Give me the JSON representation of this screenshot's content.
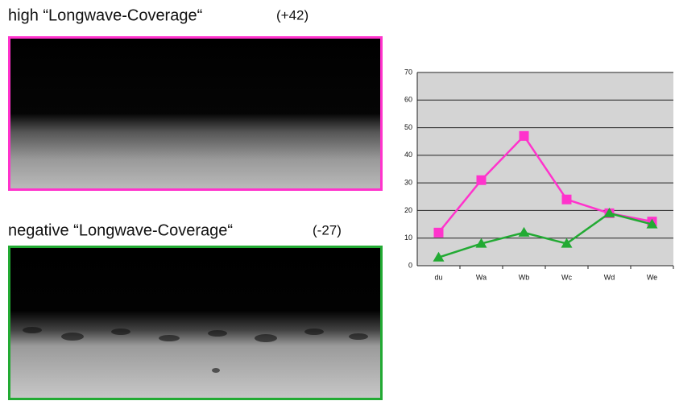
{
  "panels": [
    {
      "title": "high “Longwave-Coverage“",
      "score": "(+42)"
    },
    {
      "title": "negative “Longwave-Coverage“",
      "score": "(-27)"
    }
  ],
  "chart_data": {
    "type": "line",
    "categories": [
      "du",
      "Wa",
      "Wb",
      "Wc",
      "Wd",
      "We"
    ],
    "series": [
      {
        "color": "#ff33cc",
        "marker": "square",
        "values": [
          12,
          31,
          47,
          24,
          19,
          16
        ]
      },
      {
        "color": "#22aa33",
        "marker": "triangle",
        "values": [
          3,
          8,
          12,
          8,
          19,
          15
        ]
      }
    ],
    "ylim": [
      0,
      70
    ],
    "yticks": [
      0,
      10,
      20,
      30,
      40,
      50,
      60,
      70
    ],
    "grid": true,
    "background": "#d4d4d4"
  }
}
